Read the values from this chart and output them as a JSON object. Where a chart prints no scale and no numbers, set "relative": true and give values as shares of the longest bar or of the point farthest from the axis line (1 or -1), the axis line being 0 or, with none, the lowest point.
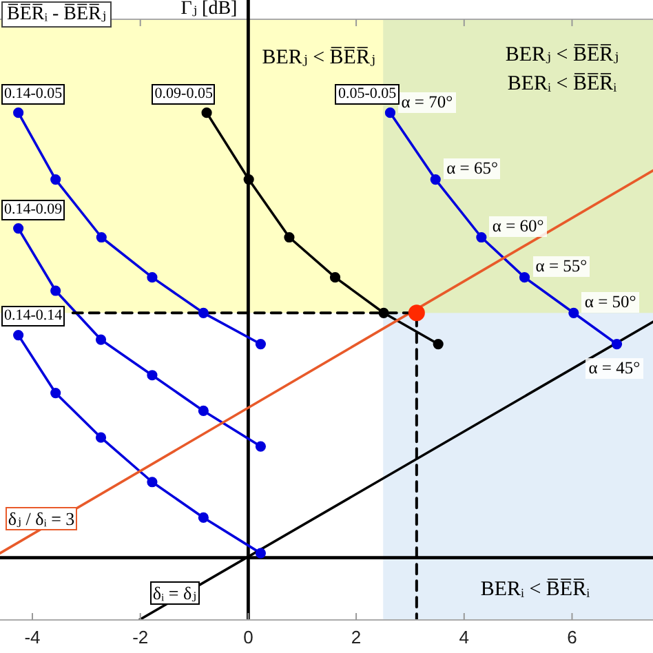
{
  "chart_data": {
    "type": "line",
    "ylabel": "Γⱼ [dB]",
    "relative": true,
    "xlim": [
      -4.6,
      7.5
    ],
    "xticks": [
      -4,
      -2,
      0,
      2,
      4,
      6
    ],
    "marker": "circle",
    "annotations": [
      "B̅E̅R̅ᵢ - B̅E̅R̅ⱼ",
      "BERⱼ < B̅E̅R̅ⱼ\nBERᵢ < B̅E̅R̅ᵢ",
      {
        "text": "α = 70°",
        "x": 2.63,
        "y": 1.0
      },
      {
        "text": "α = 65°",
        "x": 3.47,
        "y": 0.85
      },
      {
        "text": "α = 60°",
        "x": 4.32,
        "y": 0.72
      },
      {
        "text": "α = 55°",
        "x": 5.12,
        "y": 0.63
      },
      {
        "text": "α = 50°",
        "x": 6.03,
        "y": 0.55
      },
      {
        "text": "α = 45°",
        "x": 6.83,
        "y": 0.48
      }
    ],
    "bands": [
      {
        "axis": "y",
        "from": 0.55,
        "to": 1.21,
        "label": "BERⱼ < B̅E̅R̅ⱼ",
        "color": "#ffffc4"
      },
      {
        "axis": "x",
        "from": 2.5,
        "to": 7.5,
        "label": "BERᵢ < B̅E̅R̅ᵢ",
        "color": "#e3eef9"
      }
    ],
    "series": [
      {
        "name": "0.14-0.05",
        "color": "#0000dd",
        "x": [
          -4.26,
          -3.57,
          -2.72,
          -1.78,
          -0.83,
          0.23
        ],
        "values": [
          1.0,
          0.85,
          0.72,
          0.63,
          0.55,
          0.48
        ]
      },
      {
        "name": "0.14-0.09",
        "color": "#0000dd",
        "x": [
          -4.26,
          -3.57,
          -2.73,
          -1.78,
          -0.83,
          0.23
        ],
        "values": [
          0.74,
          0.6,
          0.49,
          0.41,
          0.33,
          0.25
        ]
      },
      {
        "name": "0.14-0.14",
        "color": "#0000dd",
        "x": [
          -4.26,
          -3.57,
          -2.73,
          -1.78,
          -0.83,
          0.23
        ],
        "values": [
          0.5,
          0.37,
          0.27,
          0.17,
          0.09,
          0.01
        ]
      },
      {
        "name": "0.09-0.05",
        "color": "#000000",
        "x": [
          -0.77,
          0.01,
          0.76,
          1.61,
          2.51,
          3.52
        ],
        "values": [
          1.0,
          0.85,
          0.72,
          0.63,
          0.55,
          0.48
        ]
      },
      {
        "name": "0.05-0.05",
        "color": "#0000dd",
        "x": [
          2.63,
          3.47,
          4.32,
          5.12,
          6.03,
          6.83
        ],
        "values": [
          1.0,
          0.85,
          0.72,
          0.63,
          0.55,
          0.48
        ]
      },
      {
        "name": "δⱼ / δᵢ = 3",
        "color": "#e85a2a",
        "marker": "none",
        "x": [
          -4.6,
          7.5
        ],
        "values": [
          0.01,
          0.87
        ]
      },
      {
        "name": "δᵢ = δⱼ",
        "color": "#000000",
        "marker": "none",
        "x": [
          -2.02,
          7.5
        ],
        "values": [
          -0.14,
          0.53
        ]
      },
      {
        "color": "#000000",
        "marker": "none",
        "line_style": "dashed",
        "x": [
          -3.25,
          3.12,
          3.12
        ],
        "values": [
          0.55,
          0.55,
          -0.14
        ]
      },
      {
        "type": "scatter",
        "color": "#ff2a00",
        "x": [
          3.12
        ],
        "values": [
          0.55
        ]
      }
    ]
  }
}
